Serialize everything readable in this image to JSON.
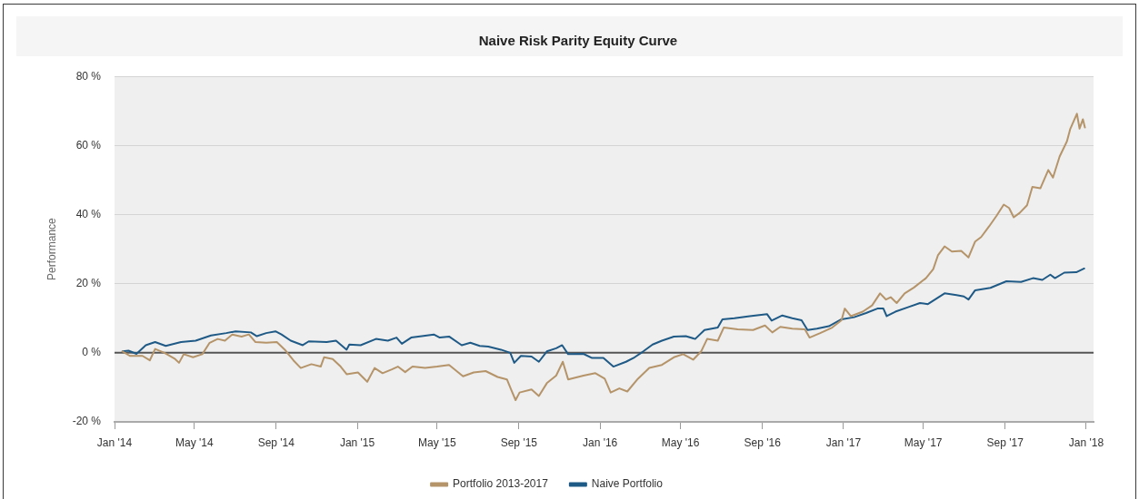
{
  "chart_data": {
    "type": "line",
    "title": "Naive Risk Parity Equity Curve",
    "ylabel": "Performance",
    "xlim": [
      "2014-01-01",
      "2018-01-12"
    ],
    "xticks": [
      {
        "value": "2014-01-01",
        "label": "Jan '14"
      },
      {
        "value": "2014-05-01",
        "label": "May '14"
      },
      {
        "value": "2014-09-01",
        "label": "Sep '14"
      },
      {
        "value": "2015-01-01",
        "label": "Jan '15"
      },
      {
        "value": "2015-05-01",
        "label": "May '15"
      },
      {
        "value": "2015-09-01",
        "label": "Sep '15"
      },
      {
        "value": "2016-01-01",
        "label": "Jan '16"
      },
      {
        "value": "2016-05-01",
        "label": "May '16"
      },
      {
        "value": "2016-09-01",
        "label": "Sep '16"
      },
      {
        "value": "2017-01-01",
        "label": "Jan '17"
      },
      {
        "value": "2017-05-01",
        "label": "May '17"
      },
      {
        "value": "2017-09-01",
        "label": "Sep '17"
      },
      {
        "value": "2018-01-01",
        "label": "Jan '18"
      }
    ],
    "ylim": [
      -20,
      80
    ],
    "yticks": [
      {
        "value": -20,
        "label": "-20 %"
      },
      {
        "value": 0,
        "label": "0 %"
      },
      {
        "value": 20,
        "label": "20 %"
      },
      {
        "value": 40,
        "label": "40 %"
      },
      {
        "value": 60,
        "label": "60 %"
      },
      {
        "value": 80,
        "label": "80 %"
      }
    ],
    "grid": "y",
    "legend": "bottom",
    "marker": "none",
    "ref_lines": [
      {
        "axis": "y",
        "value": 0,
        "color": "#555555"
      }
    ],
    "series": [
      {
        "name": "Portfolio 2013-2017",
        "color": "#b5946a",
        "x": [
          "2014-01-13",
          "2014-01-24",
          "2014-02-12",
          "2014-02-23",
          "2014-03-03",
          "2014-03-17",
          "2014-04-02",
          "2014-04-08",
          "2014-04-15",
          "2014-04-29",
          "2014-05-13",
          "2014-05-24",
          "2014-06-05",
          "2014-06-16",
          "2014-06-27",
          "2014-07-11",
          "2014-07-22",
          "2014-08-01",
          "2014-08-17",
          "2014-09-02",
          "2014-09-14",
          "2014-09-27",
          "2014-10-08",
          "2014-10-24",
          "2014-11-07",
          "2014-11-12",
          "2014-11-25",
          "2014-12-07",
          "2014-12-16",
          "2015-01-02",
          "2015-01-16",
          "2015-01-27",
          "2015-02-08",
          "2015-02-22",
          "2015-03-03",
          "2015-03-14",
          "2015-03-25",
          "2015-04-13",
          "2015-05-01",
          "2015-05-19",
          "2015-06-09",
          "2015-06-25",
          "2015-07-13",
          "2015-07-31",
          "2015-08-14",
          "2015-08-21",
          "2015-08-27",
          "2015-09-02",
          "2015-09-20",
          "2015-10-01",
          "2015-10-13",
          "2015-10-27",
          "2015-11-06",
          "2015-11-14",
          "2015-12-07",
          "2015-12-25",
          "2016-01-08",
          "2016-01-17",
          "2016-01-30",
          "2016-02-11",
          "2016-02-27",
          "2016-03-15",
          "2016-04-03",
          "2016-04-21",
          "2016-05-05",
          "2016-05-20",
          "2016-06-01",
          "2016-06-10",
          "2016-06-26",
          "2016-07-05",
          "2016-07-26",
          "2016-08-18",
          "2016-09-05",
          "2016-09-16",
          "2016-09-28",
          "2016-10-16",
          "2016-11-04",
          "2016-11-11",
          "2016-11-27",
          "2016-12-15",
          "2016-12-29",
          "2017-01-03",
          "2017-01-12",
          "2017-01-30",
          "2017-02-13",
          "2017-02-25",
          "2017-03-06",
          "2017-03-13",
          "2017-03-22",
          "2017-04-03",
          "2017-04-17",
          "2017-05-05",
          "2017-05-16",
          "2017-05-23",
          "2017-06-02",
          "2017-06-13",
          "2017-06-27",
          "2017-07-08",
          "2017-07-18",
          "2017-07-27",
          "2017-08-08",
          "2017-08-19",
          "2017-08-30",
          "2017-09-07",
          "2017-09-14",
          "2017-09-23",
          "2017-10-04",
          "2017-10-12",
          "2017-10-24",
          "2017-11-05",
          "2017-11-12",
          "2017-11-22",
          "2017-12-03",
          "2017-12-08",
          "2017-12-18",
          "2017-12-22",
          "2017-12-27",
          "2017-12-30"
        ],
        "values": [
          0.4,
          -0.9,
          -0.9,
          -2.2,
          1.1,
          0,
          -1.8,
          -2.9,
          -0.4,
          -1.3,
          -0.4,
          2.9,
          4.0,
          3.5,
          5.3,
          4.7,
          5.3,
          3.1,
          2.9,
          3.1,
          0.9,
          -2.2,
          -4.4,
          -3.3,
          -4.0,
          -1.3,
          -1.8,
          -4.0,
          -6.2,
          -5.7,
          -8.4,
          -4.4,
          -5.9,
          -4.8,
          -4.0,
          -5.6,
          -4.0,
          -4.4,
          -4.0,
          -3.5,
          -6.8,
          -5.7,
          -5.3,
          -7.0,
          -7.7,
          -11.0,
          -13.7,
          -11.5,
          -10.6,
          -12.5,
          -8.8,
          -6.6,
          -2.6,
          -7.7,
          -6.6,
          -5.9,
          -7.5,
          -11.5,
          -10.3,
          -11.2,
          -7.5,
          -4.4,
          -3.5,
          -1.3,
          -0.4,
          -2.0,
          0.4,
          4.0,
          3.5,
          7.3,
          6.8,
          6.6,
          7.9,
          5.9,
          7.5,
          7.0,
          6.8,
          4.4,
          5.7,
          7.3,
          9.4,
          12.8,
          10.6,
          11.9,
          13.7,
          17.2,
          15.4,
          16.1,
          14.4,
          17.2,
          18.9,
          21.6,
          24.2,
          28.2,
          30.8,
          29.3,
          29.5,
          27.6,
          32.2,
          33.5,
          36.6,
          39.6,
          42.9,
          41.9,
          39.2,
          40.5,
          42.7,
          48.0,
          47.6,
          52.9,
          50.7,
          56.8,
          61.2,
          64.8,
          69.2,
          64.9,
          67.6,
          65.2
        ]
      },
      {
        "name": "Naive Portfolio",
        "color": "#1f5a86",
        "x": [
          "2014-01-13",
          "2014-01-22",
          "2014-02-03",
          "2014-02-17",
          "2014-03-03",
          "2014-03-19",
          "2014-04-11",
          "2014-05-03",
          "2014-05-26",
          "2014-06-18",
          "2014-07-02",
          "2014-07-25",
          "2014-08-03",
          "2014-08-17",
          "2014-08-31",
          "2014-09-09",
          "2014-09-23",
          "2014-10-11",
          "2014-10-20",
          "2014-11-16",
          "2014-11-30",
          "2014-12-16",
          "2014-12-20",
          "2015-01-06",
          "2015-01-29",
          "2015-02-16",
          "2015-03-01",
          "2015-03-09",
          "2015-03-23",
          "2015-04-08",
          "2015-04-26",
          "2015-05-05",
          "2015-05-19",
          "2015-06-07",
          "2015-06-20",
          "2015-07-04",
          "2015-07-17",
          "2015-08-05",
          "2015-08-19",
          "2015-08-25",
          "2015-09-04",
          "2015-09-20",
          "2015-10-01",
          "2015-10-13",
          "2015-10-27",
          "2015-11-05",
          "2015-11-14",
          "2015-12-07",
          "2015-12-20",
          "2016-01-06",
          "2016-01-21",
          "2016-02-09",
          "2016-02-22",
          "2016-03-06",
          "2016-03-20",
          "2016-04-03",
          "2016-04-21",
          "2016-05-09",
          "2016-05-23",
          "2016-06-06",
          "2016-06-26",
          "2016-07-03",
          "2016-07-21",
          "2016-08-13",
          "2016-09-08",
          "2016-09-15",
          "2016-10-01",
          "2016-10-16",
          "2016-10-30",
          "2016-11-08",
          "2016-11-22",
          "2016-12-10",
          "2016-12-29",
          "2017-01-17",
          "2017-02-04",
          "2017-02-21",
          "2017-03-02",
          "2017-03-07",
          "2017-03-20",
          "2017-04-08",
          "2017-04-26",
          "2017-05-08",
          "2017-06-02",
          "2017-06-20",
          "2017-07-01",
          "2017-07-08",
          "2017-07-18",
          "2017-08-10",
          "2017-09-03",
          "2017-09-25",
          "2017-10-13",
          "2017-10-27",
          "2017-11-08",
          "2017-11-15",
          "2017-11-29",
          "2017-12-17",
          "2017-12-29"
        ],
        "values": [
          0.4,
          0.6,
          -0.3,
          2.2,
          3.1,
          2.0,
          3.1,
          3.5,
          5.0,
          5.7,
          6.2,
          5.9,
          4.8,
          5.7,
          6.2,
          5.3,
          3.5,
          2.2,
          3.3,
          3.1,
          3.5,
          0.9,
          2.4,
          2.2,
          4.0,
          3.5,
          4.4,
          2.6,
          4.4,
          4.8,
          5.3,
          4.4,
          4.7,
          2.2,
          2.9,
          2.0,
          1.8,
          0.9,
          0,
          -2.9,
          -0.9,
          -1.1,
          -2.6,
          0.4,
          1.3,
          2.2,
          -0.4,
          -0.3,
          -1.5,
          -1.5,
          -4.0,
          -2.6,
          -1.3,
          0.4,
          2.4,
          3.5,
          4.7,
          4.8,
          4.0,
          6.6,
          7.3,
          9.7,
          10.0,
          10.6,
          11.2,
          9.3,
          10.8,
          10.0,
          9.4,
          6.6,
          7.0,
          7.7,
          9.7,
          10.3,
          11.5,
          12.8,
          12.8,
          10.6,
          11.9,
          13.2,
          14.4,
          14.1,
          17.2,
          16.7,
          16.3,
          15.4,
          18.1,
          18.8,
          20.7,
          20.5,
          21.6,
          21.1,
          22.6,
          21.6,
          23.2,
          23.3,
          24.4
        ]
      }
    ]
  }
}
